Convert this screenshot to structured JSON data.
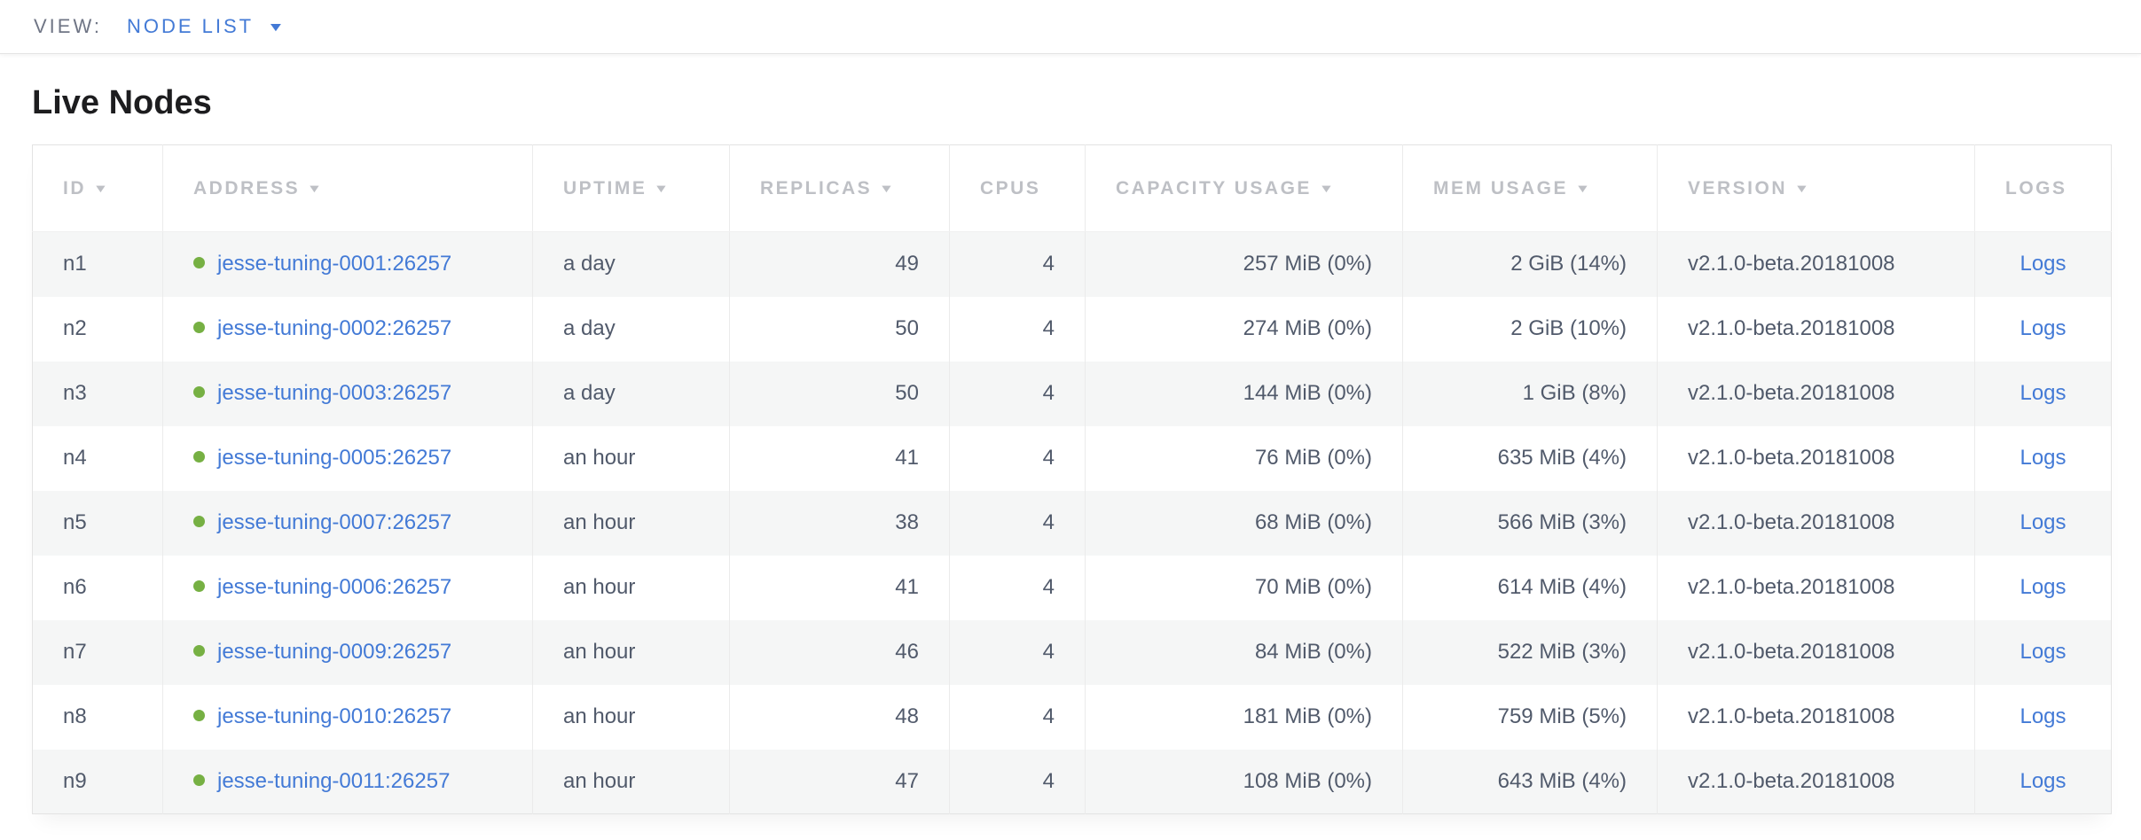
{
  "topbar": {
    "view_label": "VIEW:",
    "view_value": "NODE LIST"
  },
  "title": "Live Nodes",
  "icons": {
    "sort_desc": "▼",
    "dropdown_caret": "▼",
    "status_dot": "node-healthy-dot"
  },
  "colors": {
    "link_blue": "#437ad6",
    "healthy_green": "#76b043",
    "header_gray": "#bec0c5",
    "cell_text": "#515a6b",
    "zebra_row": "#f5f6f6",
    "border_outer": "#e3e3e3",
    "border_inner": "#ebebeb"
  },
  "table": {
    "columns": [
      {
        "key": "id",
        "label": "ID",
        "sortable": true
      },
      {
        "key": "address",
        "label": "ADDRESS",
        "sortable": true
      },
      {
        "key": "uptime",
        "label": "UPTIME",
        "sortable": true
      },
      {
        "key": "replicas",
        "label": "REPLICAS",
        "sortable": true
      },
      {
        "key": "cpus",
        "label": "CPUS",
        "sortable": false
      },
      {
        "key": "capacity_usage",
        "label": "CAPACITY USAGE",
        "sortable": true
      },
      {
        "key": "mem_usage",
        "label": "MEM USAGE",
        "sortable": true
      },
      {
        "key": "version",
        "label": "VERSION",
        "sortable": true
      },
      {
        "key": "logs",
        "label": "LOGS",
        "sortable": false
      }
    ],
    "rows": [
      {
        "id": "n1",
        "status": "healthy",
        "address": "jesse-tuning-0001:26257",
        "uptime": "a day",
        "replicas": "49",
        "cpus": "4",
        "capacity_usage": "257 MiB (0%)",
        "mem_usage": "2 GiB (14%)",
        "version": "v2.1.0-beta.20181008",
        "logs": "Logs"
      },
      {
        "id": "n2",
        "status": "healthy",
        "address": "jesse-tuning-0002:26257",
        "uptime": "a day",
        "replicas": "50",
        "cpus": "4",
        "capacity_usage": "274 MiB (0%)",
        "mem_usage": "2 GiB (10%)",
        "version": "v2.1.0-beta.20181008",
        "logs": "Logs"
      },
      {
        "id": "n3",
        "status": "healthy",
        "address": "jesse-tuning-0003:26257",
        "uptime": "a day",
        "replicas": "50",
        "cpus": "4",
        "capacity_usage": "144 MiB (0%)",
        "mem_usage": "1 GiB (8%)",
        "version": "v2.1.0-beta.20181008",
        "logs": "Logs"
      },
      {
        "id": "n4",
        "status": "healthy",
        "address": "jesse-tuning-0005:26257",
        "uptime": "an hour",
        "replicas": "41",
        "cpus": "4",
        "capacity_usage": "76 MiB (0%)",
        "mem_usage": "635 MiB (4%)",
        "version": "v2.1.0-beta.20181008",
        "logs": "Logs"
      },
      {
        "id": "n5",
        "status": "healthy",
        "address": "jesse-tuning-0007:26257",
        "uptime": "an hour",
        "replicas": "38",
        "cpus": "4",
        "capacity_usage": "68 MiB (0%)",
        "mem_usage": "566 MiB (3%)",
        "version": "v2.1.0-beta.20181008",
        "logs": "Logs"
      },
      {
        "id": "n6",
        "status": "healthy",
        "address": "jesse-tuning-0006:26257",
        "uptime": "an hour",
        "replicas": "41",
        "cpus": "4",
        "capacity_usage": "70 MiB (0%)",
        "mem_usage": "614 MiB (4%)",
        "version": "v2.1.0-beta.20181008",
        "logs": "Logs"
      },
      {
        "id": "n7",
        "status": "healthy",
        "address": "jesse-tuning-0009:26257",
        "uptime": "an hour",
        "replicas": "46",
        "cpus": "4",
        "capacity_usage": "84 MiB (0%)",
        "mem_usage": "522 MiB (3%)",
        "version": "v2.1.0-beta.20181008",
        "logs": "Logs"
      },
      {
        "id": "n8",
        "status": "healthy",
        "address": "jesse-tuning-0010:26257",
        "uptime": "an hour",
        "replicas": "48",
        "cpus": "4",
        "capacity_usage": "181 MiB (0%)",
        "mem_usage": "759 MiB (5%)",
        "version": "v2.1.0-beta.20181008",
        "logs": "Logs"
      },
      {
        "id": "n9",
        "status": "healthy",
        "address": "jesse-tuning-0011:26257",
        "uptime": "an hour",
        "replicas": "47",
        "cpus": "4",
        "capacity_usage": "108 MiB (0%)",
        "mem_usage": "643 MiB (4%)",
        "version": "v2.1.0-beta.20181008",
        "logs": "Logs"
      }
    ]
  }
}
